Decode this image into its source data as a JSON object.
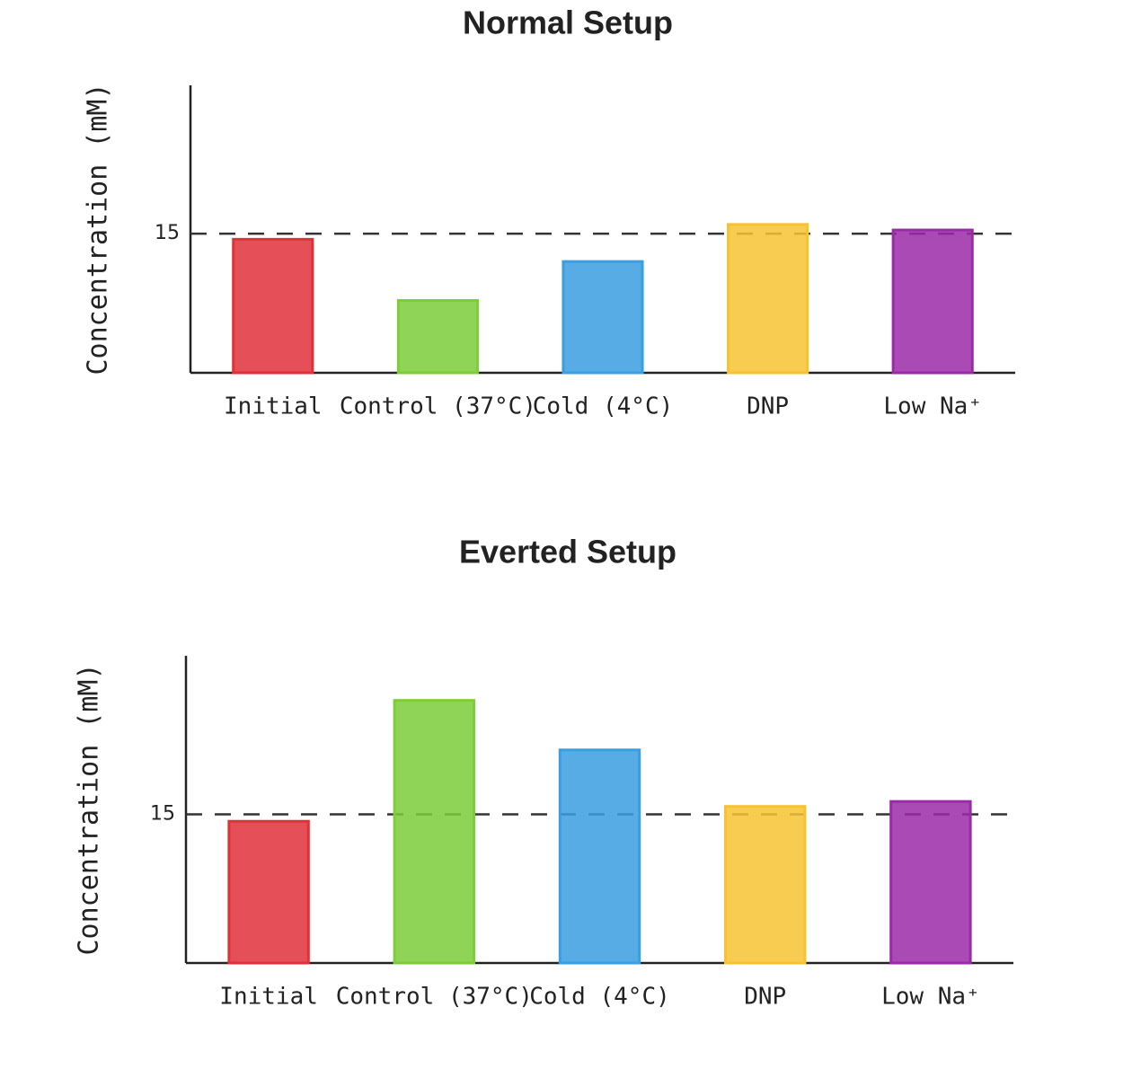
{
  "chart_data": [
    {
      "type": "bar",
      "title": "Normal Setup",
      "y_label": "Concentration (mM)",
      "categories": [
        "Initial",
        "Control (37°C)",
        "Cold (4°C)",
        "DNP",
        "Low Na⁺"
      ],
      "values": [
        14.4,
        7.8,
        12,
        16,
        15.4
      ],
      "colors": [
        "#e0303a",
        "#7dcc3a",
        "#3a9ee0",
        "#f7c232",
        "#9b2aa8"
      ],
      "ylim": [
        0,
        31
      ],
      "yticks": [
        15
      ],
      "grid": true
    },
    {
      "type": "bar",
      "title": "Everted Setup",
      "y_label": "Concentration (mM)",
      "categories": [
        "Initial",
        "Control (37°C)",
        "Cold (4°C)",
        "DNP",
        "Low Na⁺"
      ],
      "values": [
        14.3,
        26.5,
        21.5,
        15.8,
        16.3
      ],
      "colors": [
        "#e0303a",
        "#7dcc3a",
        "#3a9ee0",
        "#f7c232",
        "#9b2aa8"
      ],
      "ylim": [
        0,
        31
      ],
      "yticks": [
        15
      ],
      "grid": true
    }
  ]
}
